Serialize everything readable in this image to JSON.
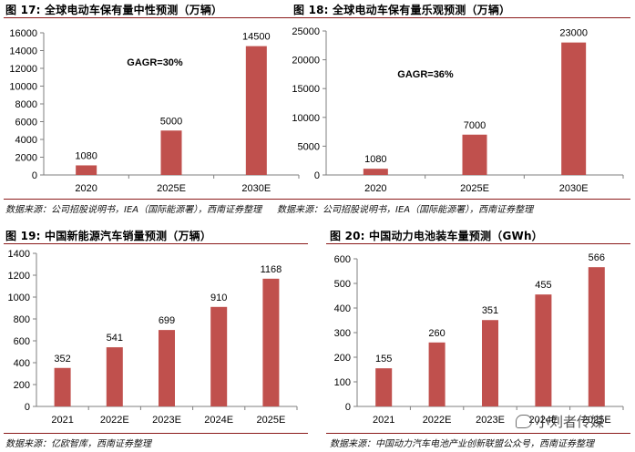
{
  "colors": {
    "bar": "#c0504d",
    "axis": "#7f7f7f",
    "rule": "#8b1a1a"
  },
  "charts": [
    {
      "title": "图 17: 全球电动车保有量中性预测（万辆）",
      "source": "数据来源：公司招股说明书，IEA（国际能源署），西南证券整理",
      "annotation": "GAGR=30%",
      "chart_data": {
        "type": "bar",
        "title": "全球电动车保有量中性预测（万辆）",
        "categories": [
          "2020",
          "2025E",
          "2030E"
        ],
        "values": [
          1080,
          5000,
          14500
        ],
        "data_labels": [
          "1080",
          "5000",
          "14500"
        ],
        "yticks": [
          0,
          2000,
          4000,
          6000,
          8000,
          10000,
          12000,
          14000,
          16000
        ],
        "ylim": [
          0,
          16000
        ],
        "xlabel": "",
        "ylabel": ""
      }
    },
    {
      "title": "图 18: 全球电动车保有量乐观预测（万辆）",
      "source": "数据来源：公司招股说明书，IEA（国际能源署），西南证券整理",
      "annotation": "GAGR=36%",
      "chart_data": {
        "type": "bar",
        "title": "全球电动车保有量乐观预测（万辆）",
        "categories": [
          "2020",
          "2025E",
          "2030E"
        ],
        "values": [
          1080,
          7000,
          23000
        ],
        "data_labels": [
          "1080",
          "7000",
          "23000"
        ],
        "yticks": [
          0,
          5000,
          10000,
          15000,
          20000,
          25000
        ],
        "ylim": [
          0,
          25000
        ],
        "xlabel": "",
        "ylabel": ""
      }
    },
    {
      "title": "图 19: 中国新能源汽车销量预测（万辆）",
      "source": "数据来源：亿欧智库，西南证券整理",
      "annotation": "",
      "chart_data": {
        "type": "bar",
        "title": "中国新能源汽车销量预测（万辆）",
        "categories": [
          "2021",
          "2022E",
          "2023E",
          "2024E",
          "2025E"
        ],
        "values": [
          352,
          541,
          699,
          910,
          1168
        ],
        "data_labels": [
          "352",
          "541",
          "699",
          "910",
          "1168"
        ],
        "yticks": [
          0,
          200,
          400,
          600,
          800,
          1000,
          1200,
          1400
        ],
        "ylim": [
          0,
          1400
        ],
        "xlabel": "",
        "ylabel": ""
      }
    },
    {
      "title": "图 20: 中国动力电池装车量预测（GWh）",
      "source": "数据来源：中国动力汽车电池产业创新联盟公众号，西南证券整理",
      "annotation": "",
      "chart_data": {
        "type": "bar",
        "title": "中国动力电池装车量预测（GWh）",
        "categories": [
          "2021",
          "2022E",
          "2023E",
          "2024E",
          "2025E"
        ],
        "values": [
          155,
          260,
          351,
          455,
          566
        ],
        "data_labels": [
          "155",
          "260",
          "351",
          "455",
          "566"
        ],
        "yticks": [
          0,
          100,
          200,
          300,
          400,
          500,
          600
        ],
        "ylim": [
          0,
          600
        ],
        "xlabel": "",
        "ylabel": ""
      }
    }
  ],
  "watermark": {
    "text": "小刘者传媒"
  }
}
